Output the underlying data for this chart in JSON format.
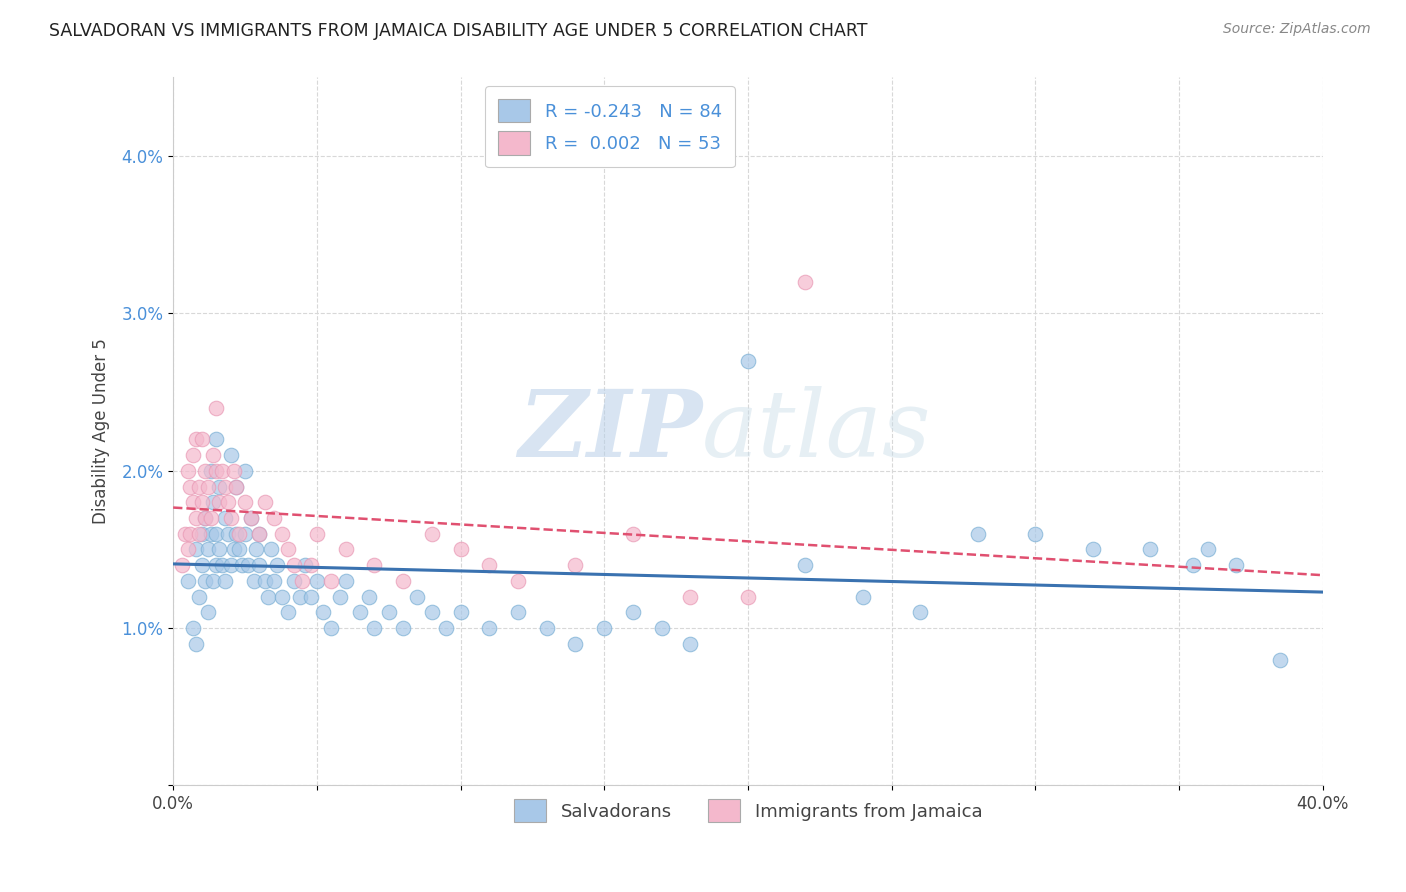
{
  "title": "SALVADORAN VS IMMIGRANTS FROM JAMAICA DISABILITY AGE UNDER 5 CORRELATION CHART",
  "source": "Source: ZipAtlas.com",
  "ylabel": "Disability Age Under 5",
  "xlim": [
    0.0,
    0.4
  ],
  "ylim": [
    0.0,
    0.045
  ],
  "legend_label_salvadorans": "Salvadorans",
  "legend_label_jamaica": "Immigrants from Jamaica",
  "blue_color": "#a8c8e8",
  "blue_edge_color": "#7aafd4",
  "pink_color": "#f4b8cc",
  "pink_edge_color": "#e898b4",
  "blue_line_color": "#3a72b0",
  "pink_line_color": "#e05070",
  "watermark_zip": "ZIP",
  "watermark_atlas": "atlas",
  "blue_R": -0.243,
  "blue_N": 84,
  "pink_R": 0.002,
  "pink_N": 53,
  "blue_scatter_x": [
    0.005,
    0.007,
    0.008,
    0.008,
    0.009,
    0.01,
    0.01,
    0.011,
    0.011,
    0.012,
    0.012,
    0.013,
    0.013,
    0.014,
    0.014,
    0.015,
    0.015,
    0.015,
    0.016,
    0.016,
    0.017,
    0.018,
    0.018,
    0.019,
    0.02,
    0.02,
    0.021,
    0.022,
    0.022,
    0.023,
    0.024,
    0.025,
    0.025,
    0.026,
    0.027,
    0.028,
    0.029,
    0.03,
    0.03,
    0.032,
    0.033,
    0.034,
    0.035,
    0.036,
    0.038,
    0.04,
    0.042,
    0.044,
    0.046,
    0.048,
    0.05,
    0.052,
    0.055,
    0.058,
    0.06,
    0.065,
    0.068,
    0.07,
    0.075,
    0.08,
    0.085,
    0.09,
    0.095,
    0.1,
    0.11,
    0.12,
    0.13,
    0.14,
    0.15,
    0.16,
    0.17,
    0.18,
    0.2,
    0.22,
    0.24,
    0.26,
    0.28,
    0.3,
    0.32,
    0.34,
    0.355,
    0.36,
    0.37,
    0.385
  ],
  "blue_scatter_y": [
    0.013,
    0.01,
    0.009,
    0.015,
    0.012,
    0.014,
    0.016,
    0.013,
    0.017,
    0.011,
    0.015,
    0.016,
    0.02,
    0.013,
    0.018,
    0.014,
    0.016,
    0.022,
    0.015,
    0.019,
    0.014,
    0.013,
    0.017,
    0.016,
    0.014,
    0.021,
    0.015,
    0.016,
    0.019,
    0.015,
    0.014,
    0.016,
    0.02,
    0.014,
    0.017,
    0.013,
    0.015,
    0.014,
    0.016,
    0.013,
    0.012,
    0.015,
    0.013,
    0.014,
    0.012,
    0.011,
    0.013,
    0.012,
    0.014,
    0.012,
    0.013,
    0.011,
    0.01,
    0.012,
    0.013,
    0.011,
    0.012,
    0.01,
    0.011,
    0.01,
    0.012,
    0.011,
    0.01,
    0.011,
    0.01,
    0.011,
    0.01,
    0.009,
    0.01,
    0.011,
    0.01,
    0.009,
    0.027,
    0.014,
    0.012,
    0.011,
    0.016,
    0.016,
    0.015,
    0.015,
    0.014,
    0.015,
    0.014,
    0.008
  ],
  "pink_scatter_x": [
    0.003,
    0.004,
    0.005,
    0.005,
    0.006,
    0.006,
    0.007,
    0.007,
    0.008,
    0.008,
    0.009,
    0.009,
    0.01,
    0.01,
    0.011,
    0.011,
    0.012,
    0.013,
    0.014,
    0.015,
    0.015,
    0.016,
    0.017,
    0.018,
    0.019,
    0.02,
    0.021,
    0.022,
    0.023,
    0.025,
    0.027,
    0.03,
    0.032,
    0.035,
    0.038,
    0.04,
    0.042,
    0.045,
    0.048,
    0.05,
    0.055,
    0.06,
    0.07,
    0.08,
    0.09,
    0.1,
    0.11,
    0.12,
    0.14,
    0.16,
    0.18,
    0.2,
    0.22
  ],
  "pink_scatter_y": [
    0.014,
    0.016,
    0.015,
    0.02,
    0.016,
    0.019,
    0.018,
    0.021,
    0.017,
    0.022,
    0.016,
    0.019,
    0.018,
    0.022,
    0.017,
    0.02,
    0.019,
    0.017,
    0.021,
    0.02,
    0.024,
    0.018,
    0.02,
    0.019,
    0.018,
    0.017,
    0.02,
    0.019,
    0.016,
    0.018,
    0.017,
    0.016,
    0.018,
    0.017,
    0.016,
    0.015,
    0.014,
    0.013,
    0.014,
    0.016,
    0.013,
    0.015,
    0.014,
    0.013,
    0.016,
    0.015,
    0.014,
    0.013,
    0.014,
    0.016,
    0.012,
    0.012,
    0.032
  ],
  "background_color": "#ffffff",
  "grid_color": "#d8d8d8"
}
